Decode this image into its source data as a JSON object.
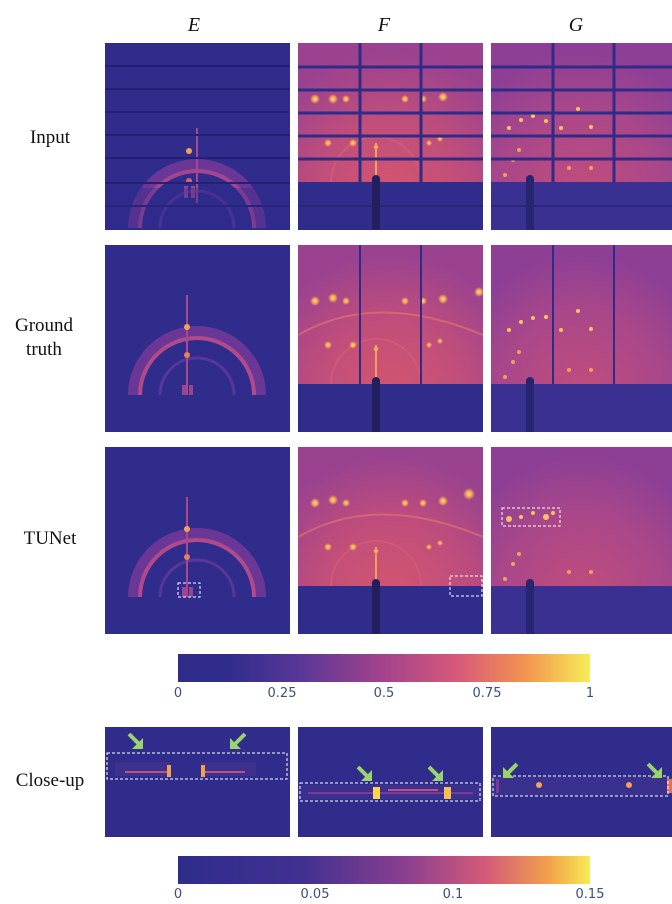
{
  "columns": [
    "E",
    "F",
    "G"
  ],
  "rows": [
    "Input",
    "Ground truth",
    "TUNet",
    "Close-up"
  ],
  "colorbar_main": {
    "ticks": [
      "0",
      "0.25",
      "0.5",
      "0.75",
      "1"
    ],
    "min": 0,
    "max": 1
  },
  "colorbar_closeup": {
    "ticks": [
      "0",
      "0.05",
      "0.1",
      "0.15"
    ],
    "min": 0,
    "max": 0.15
  },
  "colors": {
    "low": "#2f2c8c",
    "mid_low": "#6d3a9a",
    "mid": "#b4468a",
    "mid_high": "#e4786a",
    "high": "#f7d54c",
    "annotation_arrow": "#9bd46a",
    "annotation_box": "#ffffff"
  },
  "icons": [
    "arrow-annotation-icon",
    "dashed-box-annotation"
  ]
}
